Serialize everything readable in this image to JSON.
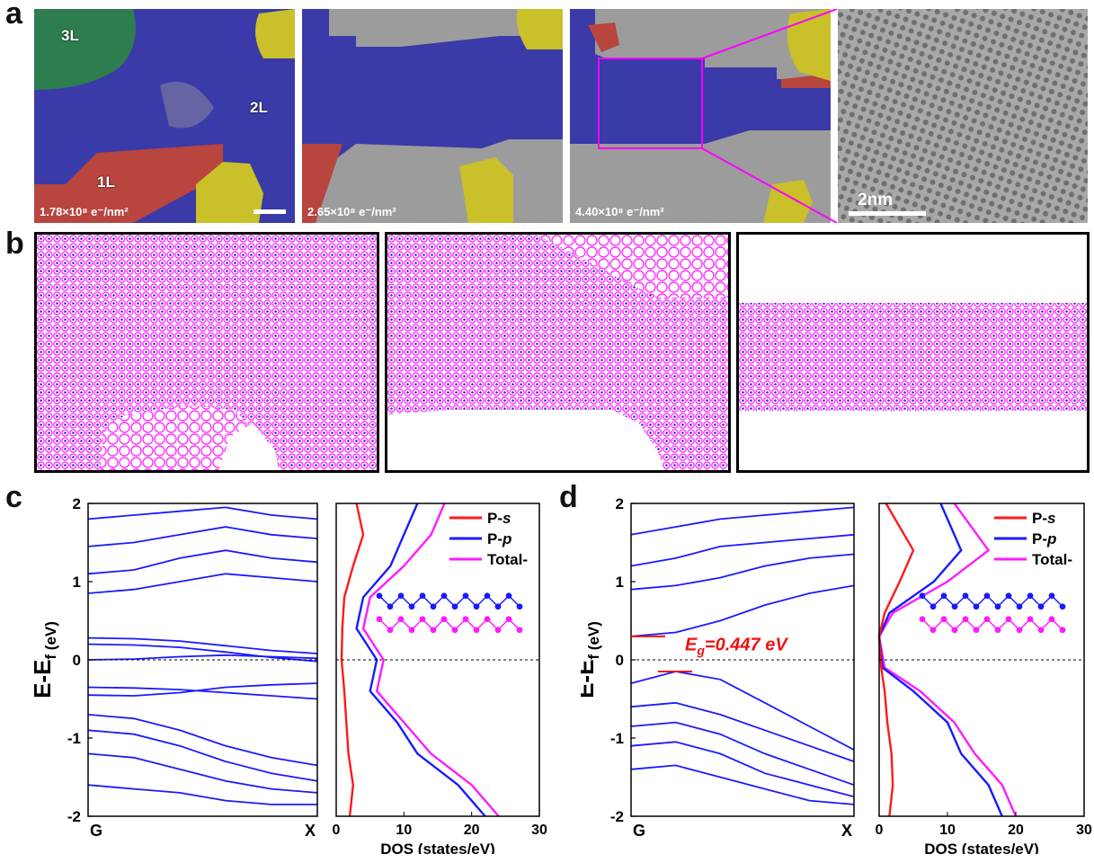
{
  "panel_labels": {
    "a": "a",
    "b": "b",
    "c": "c",
    "d": "d"
  },
  "panel_a": {
    "images": [
      {
        "dose": "1.78×10⁸ e⁻/nm²",
        "layers": [
          "3L",
          "2L",
          "1L"
        ]
      },
      {
        "dose": "2.65×10⁸ e⁻/nm²"
      },
      {
        "dose": "4.40×10⁸ e⁻/nm²"
      }
    ],
    "zoom_scalebar": "2nm"
  },
  "colors": {
    "bands": "#1a1aff",
    "dos_s": "#ff1a1a",
    "dos_p": "#1a1aff",
    "dos_total": "#ff1aff",
    "gap_marker": "#ee1111",
    "layer_3L": "#2e7d4f",
    "layer_2L": "#3a3aa8",
    "layer_1L": "#b8453e",
    "residue": "#c9c02a"
  },
  "chart_data": [
    {
      "id": "c-bands",
      "type": "line",
      "xlabel": "",
      "ylabel": "E-E_f (eV)",
      "x_ticks": [
        "G",
        "X"
      ],
      "y_ticks": [
        "2",
        "1",
        "0",
        "-1",
        "-2"
      ],
      "ylim": [
        -2,
        2
      ],
      "series": [
        {
          "values": [
            0.28,
            0.27,
            0.24,
            0.18,
            0.12,
            0.08
          ]
        },
        {
          "values": [
            0.2,
            0.19,
            0.16,
            0.1,
            0.03,
            -0.02
          ]
        },
        {
          "values": [
            0.0,
            0.01,
            0.04,
            0.06,
            0.04,
            0.02
          ]
        },
        {
          "values": [
            -0.35,
            -0.36,
            -0.38,
            -0.42,
            -0.46,
            -0.5
          ]
        },
        {
          "values": [
            -0.45,
            -0.46,
            -0.42,
            -0.35,
            -0.32,
            -0.3
          ]
        },
        {
          "values": [
            -0.7,
            -0.75,
            -0.9,
            -1.1,
            -1.25,
            -1.35
          ]
        },
        {
          "values": [
            -0.9,
            -0.95,
            -1.1,
            -1.3,
            -1.45,
            -1.55
          ]
        },
        {
          "values": [
            -1.2,
            -1.25,
            -1.4,
            -1.55,
            -1.65,
            -1.7
          ]
        },
        {
          "values": [
            -1.6,
            -1.65,
            -1.7,
            -1.8,
            -1.85,
            -1.85
          ]
        },
        {
          "values": [
            0.85,
            0.9,
            1.0,
            1.1,
            1.05,
            1.0
          ]
        },
        {
          "values": [
            1.1,
            1.15,
            1.3,
            1.4,
            1.3,
            1.25
          ]
        },
        {
          "values": [
            1.45,
            1.5,
            1.6,
            1.7,
            1.6,
            1.55
          ]
        },
        {
          "values": [
            1.8,
            1.85,
            1.9,
            1.95,
            1.85,
            1.8
          ]
        }
      ]
    },
    {
      "id": "c-dos",
      "type": "line",
      "xlabel": "DOS (states/eV)",
      "ylabel": "",
      "x_ticks": [
        "0",
        "10",
        "20",
        "30"
      ],
      "xlim": [
        0,
        30
      ],
      "ylim": [
        -2,
        2
      ],
      "legend": [
        "P-s",
        "P-p",
        "Total"
      ],
      "legend_loc": "top-right",
      "series": [
        {
          "name": "P-s",
          "y": [
            -2,
            -1.6,
            -1.2,
            -0.8,
            -0.4,
            0,
            0.4,
            0.8,
            1.2,
            1.6,
            2
          ],
          "x": [
            2,
            2.5,
            1.8,
            1.5,
            1.2,
            0.8,
            0.9,
            1.2,
            2.5,
            4,
            3
          ]
        },
        {
          "name": "P-p",
          "y": [
            -2,
            -1.6,
            -1.2,
            -0.8,
            -0.4,
            0,
            0.4,
            0.8,
            1.2,
            1.6,
            2
          ],
          "x": [
            22,
            18,
            12,
            9,
            5,
            6,
            3,
            4,
            8,
            10,
            12
          ]
        },
        {
          "name": "Total",
          "y": [
            -2,
            -1.6,
            -1.2,
            -0.8,
            -0.4,
            0,
            0.4,
            0.8,
            1.2,
            1.6,
            2
          ],
          "x": [
            24,
            20,
            14,
            10,
            6,
            7,
            4,
            5,
            10,
            14,
            16
          ]
        }
      ]
    },
    {
      "id": "d-bands",
      "type": "line",
      "xlabel": "",
      "ylabel": "E-E_f (eV)",
      "x_ticks": [
        "G",
        "X"
      ],
      "y_ticks": [
        "2",
        "1",
        "0",
        "-1",
        "-2"
      ],
      "ylim": [
        -2,
        2
      ],
      "annotation": "E_g=0.447 eV",
      "series": [
        {
          "values": [
            0.3,
            0.35,
            0.5,
            0.7,
            0.85,
            0.95
          ]
        },
        {
          "values": [
            -0.3,
            -0.15,
            -0.25,
            -0.55,
            -0.85,
            -1.15
          ]
        },
        {
          "values": [
            -0.6,
            -0.55,
            -0.7,
            -0.9,
            -1.1,
            -1.3
          ]
        },
        {
          "values": [
            -0.85,
            -0.8,
            -0.95,
            -1.2,
            -1.4,
            -1.6
          ]
        },
        {
          "values": [
            -1.1,
            -1.05,
            -1.2,
            -1.45,
            -1.6,
            -1.75
          ]
        },
        {
          "values": [
            -1.4,
            -1.35,
            -1.5,
            -1.65,
            -1.8,
            -1.85
          ]
        },
        {
          "values": [
            0.9,
            0.95,
            1.05,
            1.2,
            1.3,
            1.35
          ]
        },
        {
          "values": [
            1.2,
            1.3,
            1.45,
            1.5,
            1.55,
            1.6
          ]
        },
        {
          "values": [
            1.6,
            1.7,
            1.8,
            1.85,
            1.9,
            1.95
          ]
        }
      ]
    },
    {
      "id": "d-dos",
      "type": "line",
      "xlabel": "DOS (states/eV)",
      "ylabel": "",
      "x_ticks": [
        "0",
        "10",
        "20",
        "30"
      ],
      "xlim": [
        0,
        30
      ],
      "ylim": [
        -2,
        2
      ],
      "legend": [
        "P-s",
        "P-p",
        "Total"
      ],
      "legend_loc": "top-right",
      "series": [
        {
          "name": "P-s",
          "y": [
            -2,
            -1.6,
            -1.2,
            -0.8,
            -0.4,
            -0.1,
            0.3,
            0.6,
            1.0,
            1.4,
            2
          ],
          "x": [
            1.5,
            2,
            1.8,
            1.2,
            0.8,
            0.3,
            0,
            0.8,
            3,
            5,
            1
          ]
        },
        {
          "name": "P-p",
          "y": [
            -2,
            -1.6,
            -1.2,
            -0.8,
            -0.4,
            -0.1,
            0.3,
            0.6,
            1.0,
            1.4,
            2
          ],
          "x": [
            18,
            16,
            12,
            10,
            5,
            0.5,
            0,
            1.5,
            8,
            12,
            9
          ]
        },
        {
          "name": "Total",
          "y": [
            -2,
            -1.6,
            -1.2,
            -0.8,
            -0.4,
            -0.1,
            0.3,
            0.6,
            1.0,
            1.4,
            2
          ],
          "x": [
            20,
            18,
            14,
            11,
            6,
            0.8,
            0,
            2,
            10,
            16,
            11
          ]
        }
      ]
    }
  ]
}
